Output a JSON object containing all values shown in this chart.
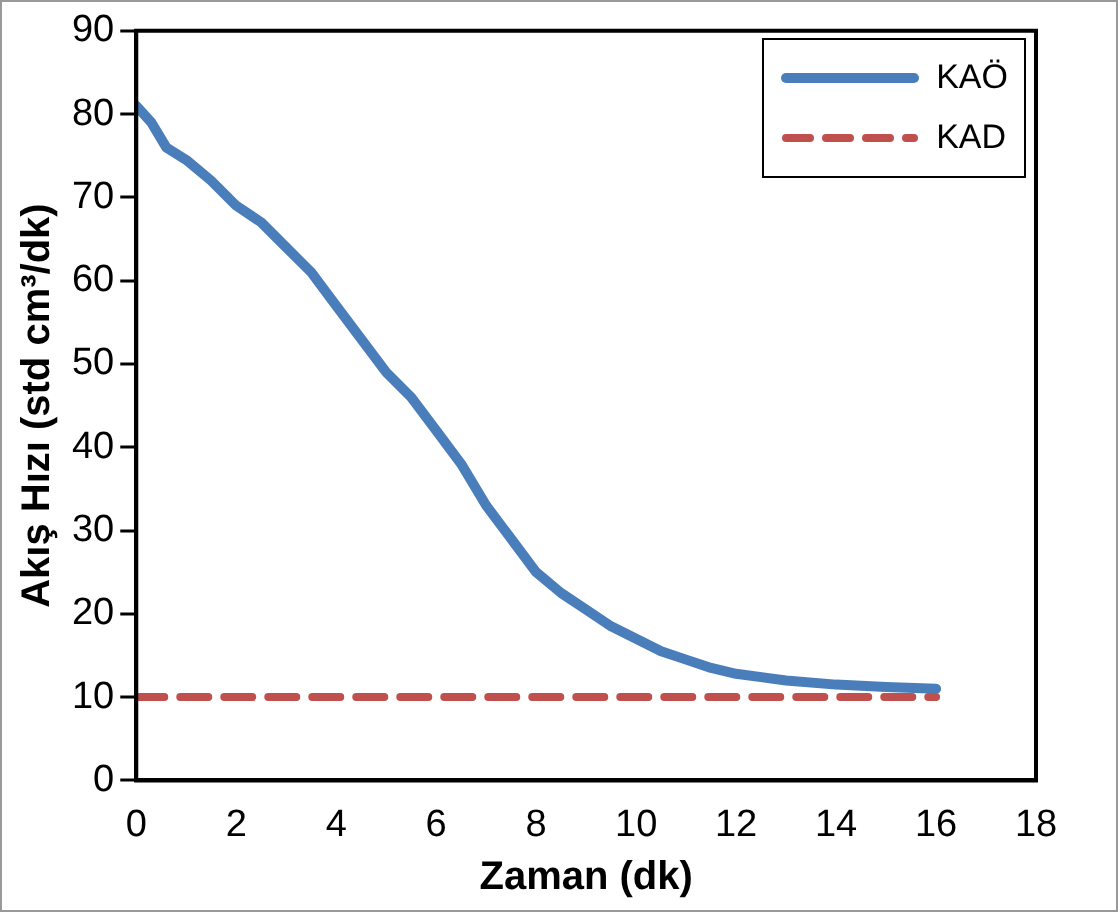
{
  "chart_data": {
    "type": "line",
    "xlabel": "Zaman (dk)",
    "ylabel": "Akış Hızı (std cm³/dk)",
    "xlim": [
      0,
      18
    ],
    "xticks": [
      0,
      2,
      4,
      6,
      8,
      10,
      12,
      14,
      16,
      18
    ],
    "ylim": [
      0,
      90
    ],
    "yticks": [
      0,
      10,
      20,
      30,
      40,
      50,
      60,
      70,
      80,
      90
    ],
    "legend": "top right",
    "marker": "none",
    "series": [
      {
        "name": "KAÖ",
        "color": "#4a7ebb",
        "line_style": "solid",
        "x": [
          0,
          0.3,
          0.6,
          1,
          1.5,
          2,
          2.5,
          3,
          3.5,
          4,
          4.5,
          5,
          5.5,
          6,
          6.5,
          7,
          7.5,
          8,
          8.5,
          9,
          9.5,
          10,
          10.5,
          11,
          11.5,
          12,
          13,
          14,
          15,
          16
        ],
        "values": [
          81,
          79,
          76,
          74.5,
          72,
          69,
          67,
          64,
          61,
          57,
          53,
          49,
          46,
          42,
          38,
          33,
          29,
          25,
          22.5,
          20.5,
          18.5,
          17,
          15.5,
          14.5,
          13.5,
          12.8,
          12,
          11.5,
          11.2,
          11
        ]
      },
      {
        "name": "KAD",
        "color": "#c0504d",
        "line_style": "dashed",
        "x": [
          0,
          16
        ],
        "values": [
          10,
          10
        ]
      }
    ]
  }
}
